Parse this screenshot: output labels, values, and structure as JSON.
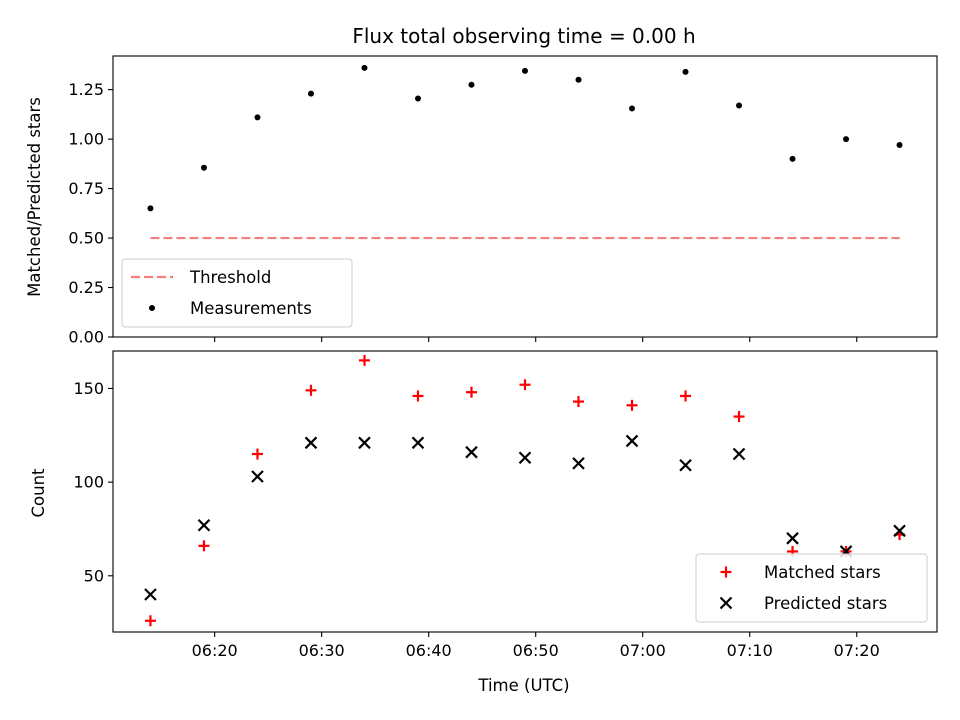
{
  "chart_data": [
    {
      "type": "scatter",
      "title": "Flux total observing time = 0.00 h",
      "ylabel": "Matched/Predicted stars",
      "xlabel": "",
      "ylim": [
        0,
        1.42
      ],
      "yticks": [
        "0.00",
        "0.25",
        "0.50",
        "0.75",
        "1.00",
        "1.25"
      ],
      "grid": false,
      "legend": "lower-left",
      "series": [
        {
          "name": "Threshold",
          "kind": "dashed-line",
          "color": "#f47f7f",
          "x": [
            "06:14",
            "07:24"
          ],
          "values": [
            0.5,
            0.5
          ]
        },
        {
          "name": "Measurements",
          "kind": "dot",
          "color": "#000000",
          "x": [
            "06:14",
            "06:19",
            "06:24",
            "06:29",
            "06:34",
            "06:39",
            "06:44",
            "06:49",
            "06:54",
            "06:59",
            "07:04",
            "07:09",
            "07:14",
            "07:19",
            "07:24"
          ],
          "values": [
            0.65,
            0.855,
            1.11,
            1.23,
            1.36,
            1.205,
            1.275,
            1.345,
            1.3,
            1.155,
            1.34,
            1.17,
            0.9,
            1.0,
            0.97
          ]
        }
      ]
    },
    {
      "type": "scatter",
      "title": "",
      "ylabel": "Count",
      "xlabel": "Time (UTC)",
      "ylim": [
        20,
        170
      ],
      "yticks": [
        "50",
        "100",
        "150"
      ],
      "xticks": [
        "06:20",
        "06:30",
        "06:40",
        "06:50",
        "07:00",
        "07:10",
        "07:20"
      ],
      "grid": false,
      "legend": "lower-right",
      "series": [
        {
          "name": "Matched stars",
          "kind": "plus",
          "color": "#ff0000",
          "x": [
            "06:14",
            "06:19",
            "06:24",
            "06:29",
            "06:34",
            "06:39",
            "06:44",
            "06:49",
            "06:54",
            "06:59",
            "07:04",
            "07:09",
            "07:14",
            "07:19",
            "07:24"
          ],
          "values": [
            26,
            66,
            115,
            149,
            165,
            146,
            148,
            152,
            143,
            141,
            146,
            135,
            63,
            63,
            72
          ]
        },
        {
          "name": "Predicted stars",
          "kind": "cross",
          "color": "#000000",
          "x": [
            "06:14",
            "06:19",
            "06:24",
            "06:29",
            "06:34",
            "06:39",
            "06:44",
            "06:49",
            "06:54",
            "06:59",
            "07:04",
            "07:09",
            "07:14",
            "07:19",
            "07:24"
          ],
          "values": [
            40,
            77,
            103,
            121,
            121,
            121,
            116,
            113,
            110,
            122,
            109,
            115,
            70,
            63,
            74
          ]
        }
      ]
    }
  ]
}
